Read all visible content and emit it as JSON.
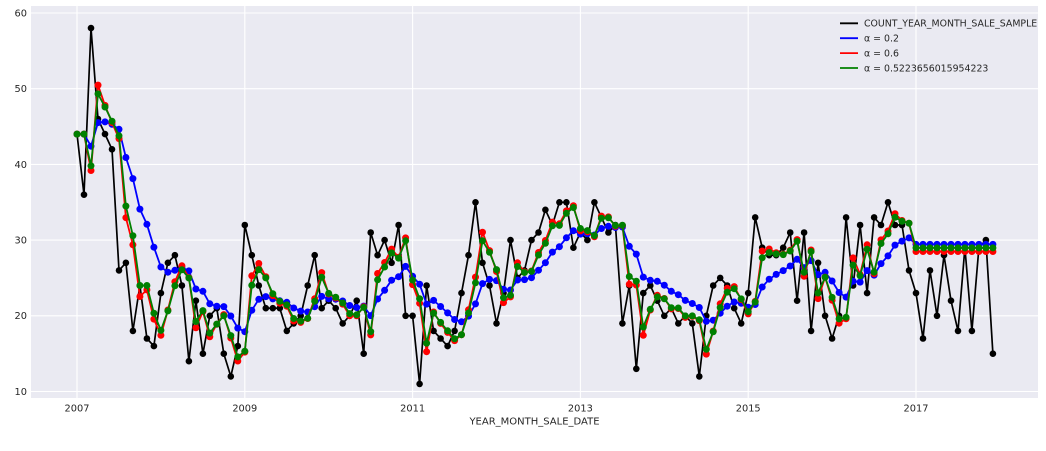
{
  "chart_data": {
    "type": "line",
    "title": "",
    "xlabel": "YEAR_MONTH_SALE_DATE",
    "ylabel": "",
    "x_tick_labels": [
      "2007",
      "2009",
      "2011",
      "2013",
      "2015",
      "2017"
    ],
    "y_ticks": [
      10,
      20,
      30,
      40,
      50,
      60
    ],
    "ylim_approx": [
      9,
      61
    ],
    "grid": true,
    "legend_position": "upper right",
    "plot_background": "#eaeaf2",
    "grid_color": "#ffffff",
    "figure_background": "#ffffff",
    "text_color": "#262626",
    "start_year": 2007,
    "months_total": 132,
    "train_months": 120,
    "series": [
      {
        "name": "COUNT_YEAR_MONTH_SALE_SAMPLE",
        "color": "#000000",
        "kind": "observed",
        "values_by_year": {
          "2007": [
            44,
            36,
            58,
            46,
            44,
            42,
            26,
            27,
            18,
            24,
            17,
            16
          ],
          "2008": [
            23,
            27,
            28,
            24,
            14,
            22,
            15,
            20,
            21,
            15,
            12,
            16
          ],
          "2009": [
            32,
            28,
            24,
            21,
            21,
            21,
            18,
            19,
            20,
            24,
            28,
            21
          ],
          "2010": [
            22,
            21,
            19,
            20,
            22,
            15,
            31,
            28,
            30,
            27,
            32,
            20
          ],
          "2011": [
            20,
            11,
            24,
            18,
            17,
            16,
            18,
            23,
            28,
            35,
            27,
            24
          ],
          "2012": [
            19,
            23,
            30,
            25,
            26,
            30,
            31,
            34,
            32,
            35,
            35,
            29
          ],
          "2013": [
            31,
            30,
            35,
            33,
            31,
            32,
            19,
            24,
            13,
            23,
            24,
            22
          ],
          "2014": [
            20,
            21,
            19,
            20,
            19,
            12,
            20,
            24,
            25,
            24,
            21,
            19
          ],
          "2015": [
            23,
            33,
            29,
            28,
            28,
            29,
            31,
            22,
            31,
            18,
            27,
            20
          ],
          "2016": [
            17,
            20,
            33,
            24,
            32,
            23,
            33,
            32,
            35,
            32,
            32,
            26
          ],
          "2017": [
            23,
            17,
            26,
            20,
            28,
            22,
            18,
            29,
            18,
            29,
            30,
            15
          ]
        }
      },
      {
        "name": "α = 0.2",
        "color": "#0000ff",
        "kind": "ses_fit_with_flat_forecast",
        "alpha": 0.2,
        "forecast_level_approx": 29.4
      },
      {
        "name": "α = 0.6",
        "color": "#ff0000",
        "kind": "ses_fit_with_flat_forecast",
        "alpha": 0.6,
        "forecast_level_approx": 28.6
      },
      {
        "name": "α = 0.5223656015954223",
        "color": "#008000",
        "kind": "ses_fit_with_flat_forecast",
        "alpha": 0.5223656015954223,
        "forecast_level_approx": 29.0
      }
    ]
  }
}
